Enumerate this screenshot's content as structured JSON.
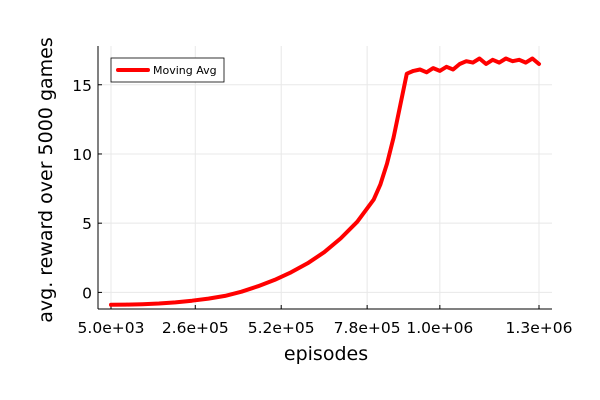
{
  "chart_data": {
    "type": "line",
    "xlabel": "episodes",
    "ylabel": "avg. reward over 5000 games",
    "xlim": [
      5000,
      1300000
    ],
    "ylim": [
      -1.2,
      17.8
    ],
    "x_ticks": [
      5000,
      260000,
      520000,
      780000,
      1000000,
      1300000
    ],
    "x_tick_labels": [
      "5.0e+03",
      "2.6e+05",
      "5.2e+05",
      "7.8e+05",
      "1.0e+06",
      "1.3e+06"
    ],
    "y_ticks": [
      0,
      5,
      10,
      15
    ],
    "y_tick_labels": [
      "0",
      "5",
      "10",
      "15"
    ],
    "grid": true,
    "legend_position": "top-left",
    "colors": {
      "series": "#ff0000"
    },
    "series": [
      {
        "name": "Moving Avg",
        "x": [
          5000,
          50000,
          100000,
          150000,
          200000,
          250000,
          300000,
          350000,
          400000,
          450000,
          500000,
          550000,
          600000,
          650000,
          700000,
          750000,
          800000,
          820000,
          840000,
          860000,
          880000,
          900000,
          920000,
          940000,
          960000,
          980000,
          1000000,
          1020000,
          1040000,
          1060000,
          1080000,
          1100000,
          1120000,
          1140000,
          1160000,
          1180000,
          1200000,
          1220000,
          1240000,
          1260000,
          1280000,
          1300000
        ],
        "y": [
          -0.9,
          -0.88,
          -0.85,
          -0.8,
          -0.72,
          -0.6,
          -0.45,
          -0.25,
          0.05,
          0.45,
          0.9,
          1.45,
          2.1,
          2.9,
          3.9,
          5.1,
          6.7,
          7.8,
          9.3,
          11.2,
          13.5,
          15.8,
          16.0,
          16.1,
          15.9,
          16.2,
          16.0,
          16.3,
          16.1,
          16.5,
          16.7,
          16.6,
          16.9,
          16.5,
          16.8,
          16.6,
          16.9,
          16.7,
          16.8,
          16.6,
          16.9,
          16.5
        ]
      }
    ]
  }
}
